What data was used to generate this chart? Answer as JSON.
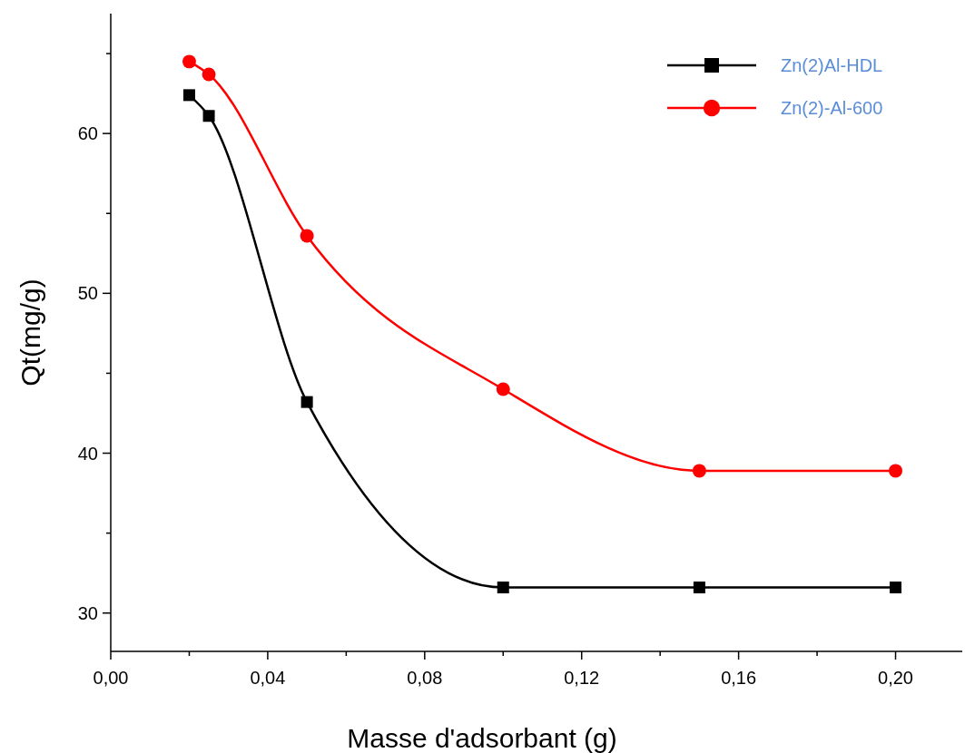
{
  "chart_data": {
    "type": "line",
    "xlabel": "Masse d'adsorbant (g)",
    "ylabel": "Qt(mg/g)",
    "x": [
      0.02,
      0.025,
      0.05,
      0.1,
      0.15,
      0.2
    ],
    "series": [
      {
        "name": "Zn(2)Al-HDL",
        "color": "#000000",
        "marker": "square",
        "values": [
          62.4,
          61.1,
          43.2,
          31.6,
          31.6,
          31.6
        ]
      },
      {
        "name": "Zn(2)-Al-600",
        "color": "#ff0000",
        "marker": "circle",
        "values": [
          64.5,
          63.7,
          53.6,
          44.0,
          38.9,
          38.9
        ]
      }
    ],
    "xlim": [
      0,
      0.217
    ],
    "ylim": [
      27.6,
      67.5
    ],
    "xticks": [
      {
        "value": 0,
        "label": "0,00"
      },
      {
        "value": 0.02,
        "label": null
      },
      {
        "value": 0.04,
        "label": "0,04"
      },
      {
        "value": 0.06,
        "label": null
      },
      {
        "value": 0.08,
        "label": "0,08"
      },
      {
        "value": 0.1,
        "label": null
      },
      {
        "value": 0.12,
        "label": "0,12"
      },
      {
        "value": 0.14,
        "label": null
      },
      {
        "value": 0.16,
        "label": "0,16"
      },
      {
        "value": 0.18,
        "label": null
      },
      {
        "value": 0.2,
        "label": "0,20"
      }
    ],
    "yticks": [
      {
        "value": 30,
        "label": "30"
      },
      {
        "value": 35,
        "label": null
      },
      {
        "value": 40,
        "label": "40"
      },
      {
        "value": 45,
        "label": null
      },
      {
        "value": 50,
        "label": "50"
      },
      {
        "value": 55,
        "label": null
      },
      {
        "value": 60,
        "label": "60"
      },
      {
        "value": 65,
        "label": null
      }
    ],
    "legend": "top right",
    "grid": false,
    "line_style": "solid"
  }
}
